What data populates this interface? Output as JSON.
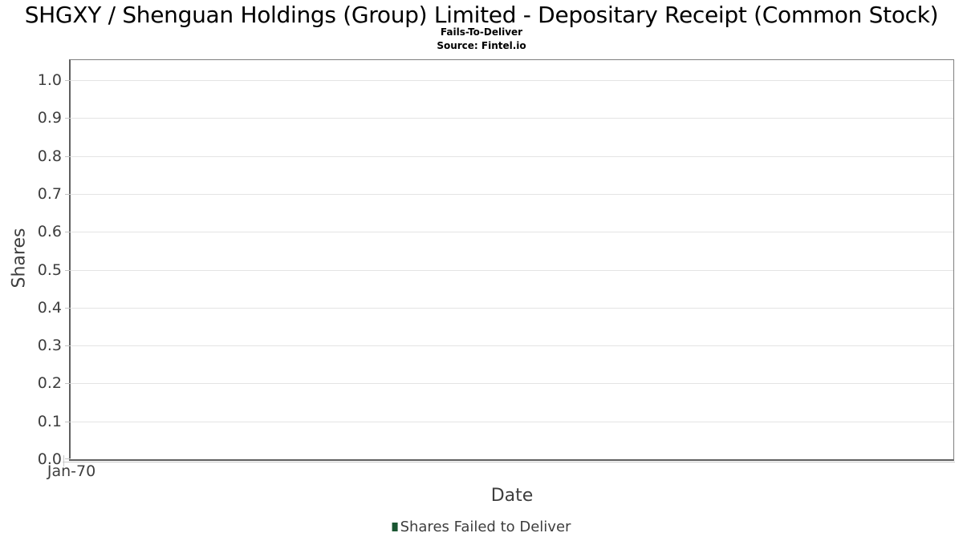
{
  "header": {
    "title": "SHGXY / Shenguan Holdings (Group) Limited - Depositary Receipt (Common Stock)",
    "subtitle": "Fails-To-Deliver",
    "source": "Source: Fintel.io"
  },
  "chart_data": {
    "type": "bar",
    "title": "SHGXY / Shenguan Holdings (Group) Limited - Depositary Receipt (Common Stock)",
    "subtitle": "Fails-To-Deliver",
    "source_note": "Source: Fintel.io",
    "xlabel": "Date",
    "ylabel": "Shares",
    "x_ticks": [
      "Jan-70"
    ],
    "y_ticks": [
      "1.0",
      "0.9",
      "0.8",
      "0.7",
      "0.6",
      "0.5",
      "0.4",
      "0.3",
      "0.2",
      "0.1",
      "0.0"
    ],
    "ylim": [
      0,
      1.05
    ],
    "grid": true,
    "legend_position": "bottom",
    "series": [
      {
        "name": "Shares Failed to Deliver",
        "type": "bar",
        "color": "#1a5632",
        "x": [],
        "values": []
      }
    ]
  },
  "legend": {
    "items": [
      {
        "label": "Shares Failed to Deliver",
        "color": "#1a5632"
      }
    ]
  },
  "colors": {
    "background": "#ffffff",
    "plot_border_dark": "#5f5f5f",
    "plot_border_light": "#7e7e7e",
    "gridline": "#e4e4e4",
    "tick_mark": "#c4c4c4",
    "axis_text": "#3e3e3e",
    "title_text": "#000000",
    "legend_marker": "#1a5632"
  }
}
